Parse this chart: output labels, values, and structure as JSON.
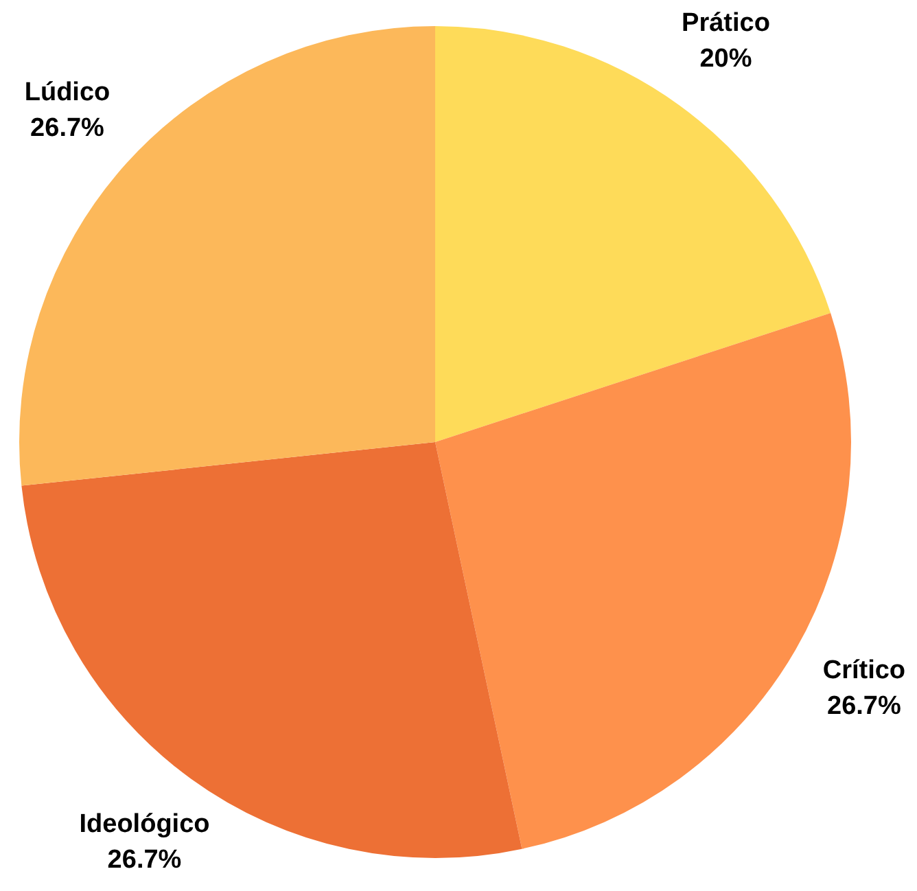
{
  "chart_data": {
    "type": "pie",
    "categories": [
      "Prático",
      "Crítico",
      "Ideológico",
      "Lúdico"
    ],
    "values": [
      20,
      26.7,
      26.7,
      26.7
    ],
    "value_labels": [
      "20%",
      "26.7%",
      "26.7%",
      "26.7%"
    ],
    "colors": [
      "#fedb59",
      "#fe914c",
      "#ed7035",
      "#fcb85a"
    ],
    "legend": false
  }
}
